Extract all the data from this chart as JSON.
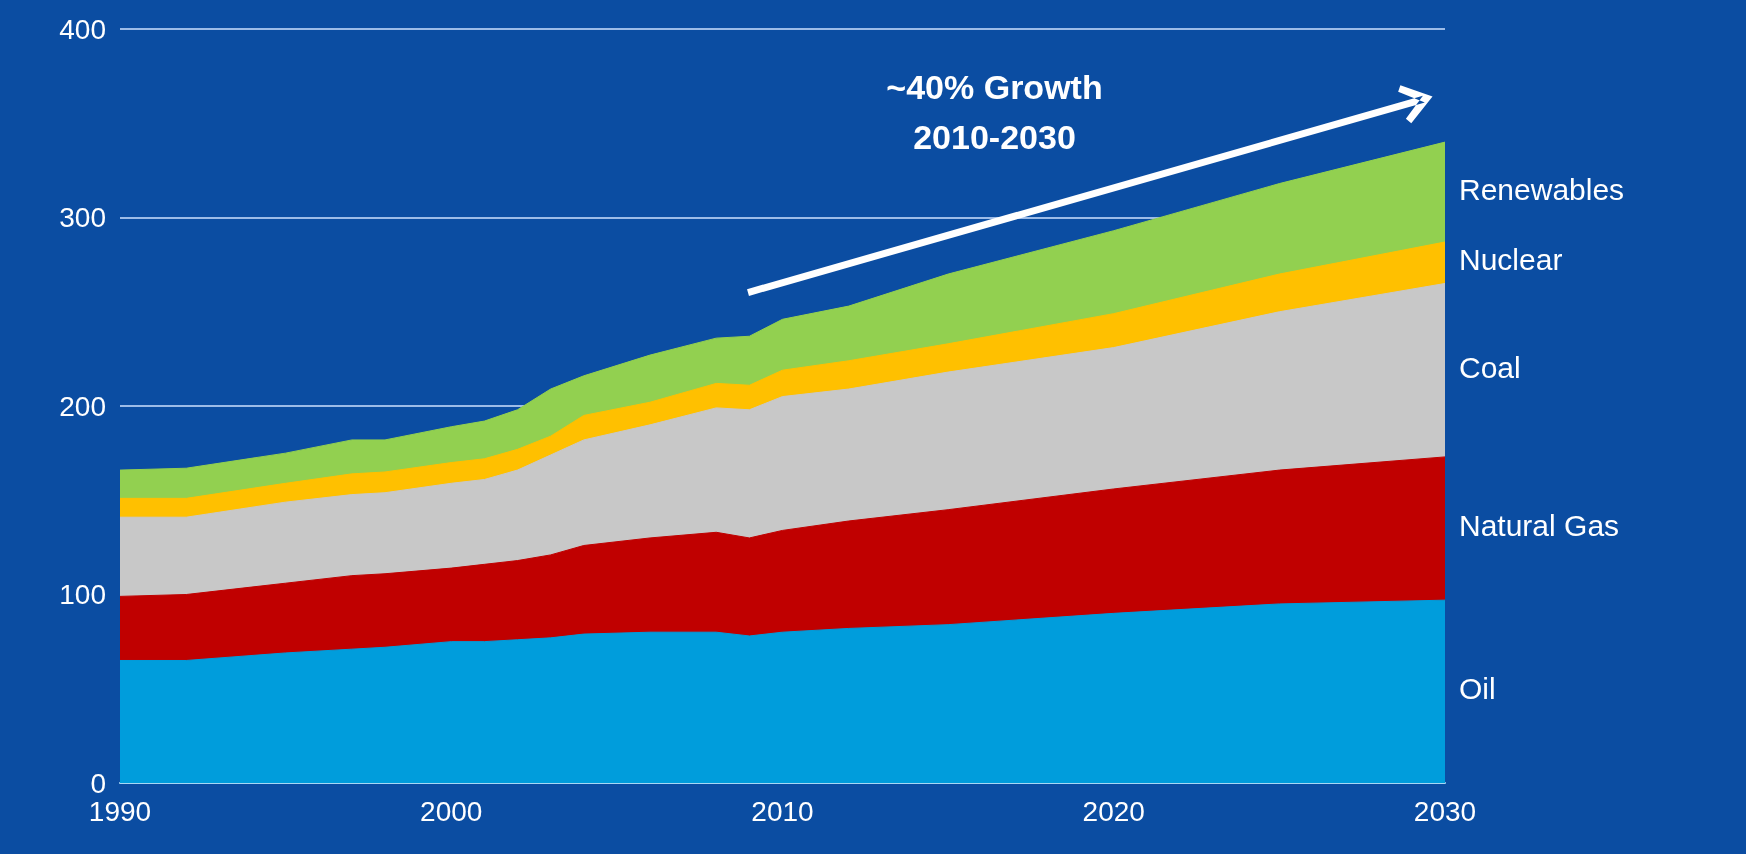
{
  "chart_data": {
    "type": "area",
    "stacked": true,
    "x": [
      1990,
      1992,
      1995,
      1997,
      1998,
      2000,
      2001,
      2002,
      2003,
      2004,
      2006,
      2008,
      2009,
      2010,
      2012,
      2015,
      2020,
      2025,
      2030
    ],
    "series": [
      {
        "name": "Oil",
        "color": "#009ddc",
        "values": [
          65,
          65,
          69,
          71,
          72,
          75,
          75,
          76,
          77,
          79,
          80,
          80,
          78,
          80,
          82,
          84,
          90,
          95,
          97
        ]
      },
      {
        "name": "Natural Gas",
        "color": "#c00000",
        "values": [
          34,
          35,
          37,
          39,
          39,
          39,
          41,
          42,
          44,
          47,
          50,
          53,
          52,
          54,
          57,
          61,
          66,
          71,
          76
        ]
      },
      {
        "name": "Coal",
        "color": "#c8c8c8",
        "values": [
          42,
          41,
          43,
          43,
          43,
          45,
          45,
          48,
          53,
          56,
          60,
          66,
          68,
          71,
          70,
          73,
          75,
          84,
          92
        ]
      },
      {
        "name": "Nuclear",
        "color": "#ffc000",
        "values": [
          10,
          10,
          10,
          11,
          11,
          11,
          11,
          11,
          10,
          13,
          12,
          13,
          13,
          14,
          15,
          15,
          18,
          20,
          22
        ]
      },
      {
        "name": "Renewables",
        "color": "#92d050",
        "values": [
          15,
          16,
          16,
          18,
          17,
          19,
          20,
          21,
          25,
          21,
          25,
          24,
          26,
          27,
          29,
          37,
          44,
          48,
          53
        ]
      }
    ],
    "xlim": [
      1990,
      2030
    ],
    "xticks": [
      1990,
      2000,
      2010,
      2020,
      2030
    ],
    "ylim": [
      0,
      400
    ],
    "yticks": [
      0,
      100,
      200,
      300,
      400
    ],
    "grid": "y",
    "annotations": [
      "~40% Growth\n2010-2030"
    ]
  }
}
